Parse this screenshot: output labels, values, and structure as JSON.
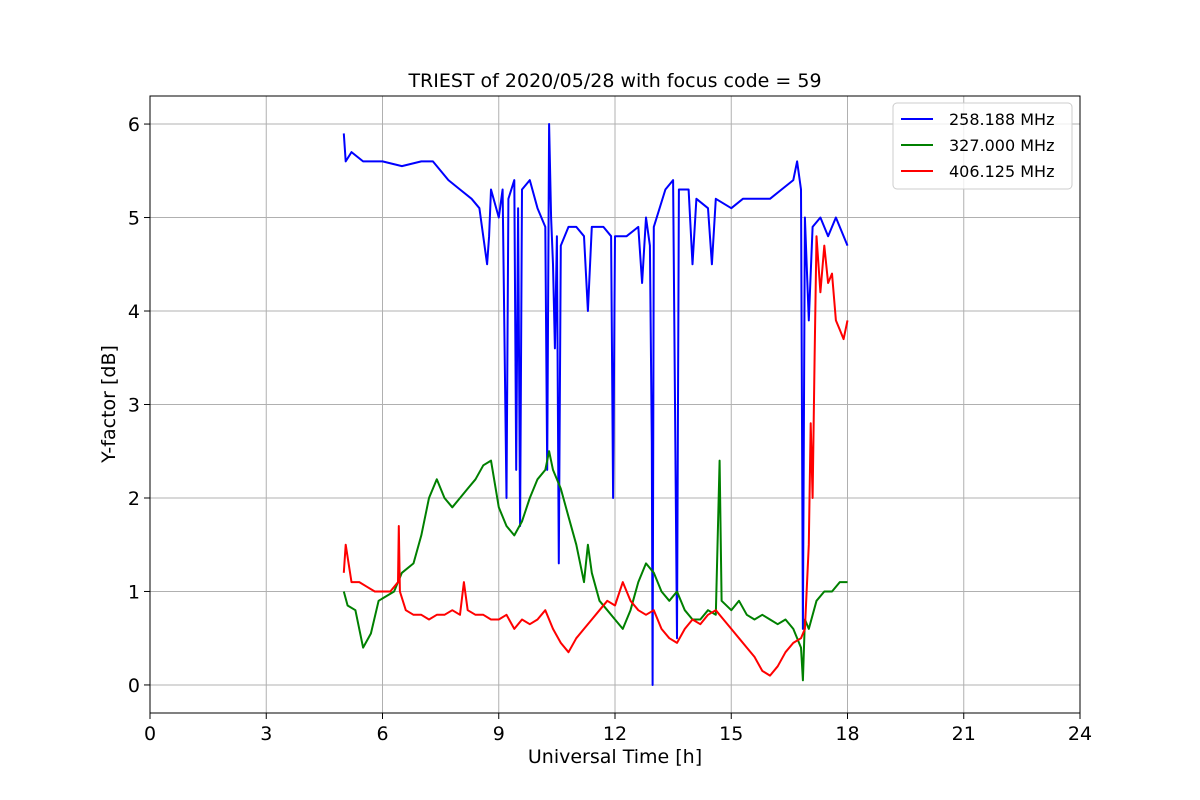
{
  "chart_data": {
    "type": "line",
    "title": "TRIEST of 2020/05/28 with focus code = 59",
    "xlabel": "Universal Time [h]",
    "ylabel": "Y-factor [dB]",
    "xlim": [
      0,
      24
    ],
    "ylim": [
      -0.3,
      6.3
    ],
    "xticks": [
      0,
      3,
      6,
      9,
      12,
      15,
      18,
      21,
      24
    ],
    "yticks": [
      0,
      1,
      2,
      3,
      4,
      5,
      6
    ],
    "grid": true,
    "legend_position": "top-right",
    "series": [
      {
        "name": "258.188 MHz",
        "color": "#0000ff",
        "points": [
          [
            5.0,
            5.9
          ],
          [
            5.05,
            5.6
          ],
          [
            5.2,
            5.7
          ],
          [
            5.5,
            5.6
          ],
          [
            6.0,
            5.6
          ],
          [
            6.5,
            5.55
          ],
          [
            7.0,
            5.6
          ],
          [
            7.3,
            5.6
          ],
          [
            7.7,
            5.4
          ],
          [
            8.0,
            5.3
          ],
          [
            8.3,
            5.2
          ],
          [
            8.5,
            5.1
          ],
          [
            8.7,
            4.5
          ],
          [
            8.75,
            4.8
          ],
          [
            8.8,
            5.3
          ],
          [
            9.0,
            5.0
          ],
          [
            9.1,
            5.3
          ],
          [
            9.2,
            2.0
          ],
          [
            9.25,
            5.2
          ],
          [
            9.4,
            5.4
          ],
          [
            9.45,
            2.3
          ],
          [
            9.5,
            5.1
          ],
          [
            9.55,
            1.7
          ],
          [
            9.6,
            5.3
          ],
          [
            9.8,
            5.4
          ],
          [
            10.0,
            5.1
          ],
          [
            10.2,
            4.9
          ],
          [
            10.25,
            2.3
          ],
          [
            10.3,
            6.0
          ],
          [
            10.35,
            5.0
          ],
          [
            10.4,
            4.5
          ],
          [
            10.45,
            3.6
          ],
          [
            10.5,
            4.8
          ],
          [
            10.55,
            1.3
          ],
          [
            10.6,
            4.7
          ],
          [
            10.8,
            4.9
          ],
          [
            11.0,
            4.9
          ],
          [
            11.2,
            4.8
          ],
          [
            11.3,
            4.0
          ],
          [
            11.4,
            4.9
          ],
          [
            11.7,
            4.9
          ],
          [
            11.9,
            4.8
          ],
          [
            11.95,
            2.0
          ],
          [
            12.0,
            4.8
          ],
          [
            12.3,
            4.8
          ],
          [
            12.6,
            4.9
          ],
          [
            12.7,
            4.3
          ],
          [
            12.8,
            5.0
          ],
          [
            12.9,
            4.7
          ],
          [
            12.95,
            2.6
          ],
          [
            12.97,
            0.0
          ],
          [
            13.0,
            4.9
          ],
          [
            13.3,
            5.3
          ],
          [
            13.5,
            5.4
          ],
          [
            13.6,
            0.5
          ],
          [
            13.65,
            5.3
          ],
          [
            13.9,
            5.3
          ],
          [
            14.0,
            4.5
          ],
          [
            14.1,
            5.2
          ],
          [
            14.4,
            5.1
          ],
          [
            14.5,
            4.5
          ],
          [
            14.6,
            5.2
          ],
          [
            15.0,
            5.1
          ],
          [
            15.3,
            5.2
          ],
          [
            15.7,
            5.2
          ],
          [
            16.0,
            5.2
          ],
          [
            16.3,
            5.3
          ],
          [
            16.6,
            5.4
          ],
          [
            16.7,
            5.6
          ],
          [
            16.8,
            5.3
          ],
          [
            16.85,
            0.6
          ],
          [
            16.9,
            5.0
          ],
          [
            17.0,
            3.9
          ],
          [
            17.1,
            4.9
          ],
          [
            17.3,
            5.0
          ],
          [
            17.5,
            4.8
          ],
          [
            17.7,
            5.0
          ],
          [
            18.0,
            4.7
          ]
        ]
      },
      {
        "name": "327.000 MHz",
        "color": "#008000",
        "points": [
          [
            5.0,
            1.0
          ],
          [
            5.1,
            0.85
          ],
          [
            5.3,
            0.8
          ],
          [
            5.5,
            0.4
          ],
          [
            5.7,
            0.55
          ],
          [
            5.9,
            0.9
          ],
          [
            6.1,
            0.95
          ],
          [
            6.3,
            1.0
          ],
          [
            6.5,
            1.2
          ],
          [
            6.8,
            1.3
          ],
          [
            7.0,
            1.6
          ],
          [
            7.2,
            2.0
          ],
          [
            7.4,
            2.2
          ],
          [
            7.6,
            2.0
          ],
          [
            7.8,
            1.9
          ],
          [
            8.0,
            2.0
          ],
          [
            8.2,
            2.1
          ],
          [
            8.4,
            2.2
          ],
          [
            8.6,
            2.35
          ],
          [
            8.8,
            2.4
          ],
          [
            9.0,
            1.9
          ],
          [
            9.2,
            1.7
          ],
          [
            9.4,
            1.6
          ],
          [
            9.6,
            1.75
          ],
          [
            9.8,
            2.0
          ],
          [
            10.0,
            2.2
          ],
          [
            10.2,
            2.3
          ],
          [
            10.3,
            2.5
          ],
          [
            10.4,
            2.3
          ],
          [
            10.6,
            2.1
          ],
          [
            10.8,
            1.8
          ],
          [
            11.0,
            1.5
          ],
          [
            11.2,
            1.1
          ],
          [
            11.3,
            1.5
          ],
          [
            11.4,
            1.2
          ],
          [
            11.6,
            0.9
          ],
          [
            11.8,
            0.8
          ],
          [
            12.0,
            0.7
          ],
          [
            12.2,
            0.6
          ],
          [
            12.4,
            0.8
          ],
          [
            12.6,
            1.1
          ],
          [
            12.8,
            1.3
          ],
          [
            13.0,
            1.2
          ],
          [
            13.2,
            1.0
          ],
          [
            13.4,
            0.9
          ],
          [
            13.6,
            1.0
          ],
          [
            13.8,
            0.8
          ],
          [
            14.0,
            0.7
          ],
          [
            14.2,
            0.7
          ],
          [
            14.4,
            0.8
          ],
          [
            14.6,
            0.75
          ],
          [
            14.7,
            2.4
          ],
          [
            14.75,
            0.9
          ],
          [
            15.0,
            0.8
          ],
          [
            15.2,
            0.9
          ],
          [
            15.4,
            0.75
          ],
          [
            15.6,
            0.7
          ],
          [
            15.8,
            0.75
          ],
          [
            16.0,
            0.7
          ],
          [
            16.2,
            0.65
          ],
          [
            16.4,
            0.7
          ],
          [
            16.6,
            0.6
          ],
          [
            16.8,
            0.4
          ],
          [
            16.85,
            0.05
          ],
          [
            16.9,
            0.7
          ],
          [
            17.0,
            0.6
          ],
          [
            17.2,
            0.9
          ],
          [
            17.4,
            1.0
          ],
          [
            17.6,
            1.0
          ],
          [
            17.8,
            1.1
          ],
          [
            18.0,
            1.1
          ]
        ]
      },
      {
        "name": "406.125 MHz",
        "color": "#ff0000",
        "points": [
          [
            5.0,
            1.2
          ],
          [
            5.05,
            1.5
          ],
          [
            5.2,
            1.1
          ],
          [
            5.4,
            1.1
          ],
          [
            5.6,
            1.05
          ],
          [
            5.8,
            1.0
          ],
          [
            6.0,
            1.0
          ],
          [
            6.2,
            1.0
          ],
          [
            6.4,
            1.1
          ],
          [
            6.42,
            1.7
          ],
          [
            6.45,
            1.0
          ],
          [
            6.6,
            0.8
          ],
          [
            6.8,
            0.75
          ],
          [
            7.0,
            0.75
          ],
          [
            7.2,
            0.7
          ],
          [
            7.4,
            0.75
          ],
          [
            7.6,
            0.75
          ],
          [
            7.8,
            0.8
          ],
          [
            8.0,
            0.75
          ],
          [
            8.1,
            1.1
          ],
          [
            8.2,
            0.8
          ],
          [
            8.4,
            0.75
          ],
          [
            8.6,
            0.75
          ],
          [
            8.8,
            0.7
          ],
          [
            9.0,
            0.7
          ],
          [
            9.2,
            0.75
          ],
          [
            9.4,
            0.6
          ],
          [
            9.6,
            0.7
          ],
          [
            9.8,
            0.65
          ],
          [
            10.0,
            0.7
          ],
          [
            10.2,
            0.8
          ],
          [
            10.4,
            0.6
          ],
          [
            10.6,
            0.45
          ],
          [
            10.8,
            0.35
          ],
          [
            11.0,
            0.5
          ],
          [
            11.2,
            0.6
          ],
          [
            11.4,
            0.7
          ],
          [
            11.6,
            0.8
          ],
          [
            11.8,
            0.9
          ],
          [
            12.0,
            0.85
          ],
          [
            12.2,
            1.1
          ],
          [
            12.4,
            0.9
          ],
          [
            12.6,
            0.8
          ],
          [
            12.8,
            0.75
          ],
          [
            13.0,
            0.8
          ],
          [
            13.2,
            0.6
          ],
          [
            13.4,
            0.5
          ],
          [
            13.6,
            0.45
          ],
          [
            13.8,
            0.6
          ],
          [
            14.0,
            0.7
          ],
          [
            14.2,
            0.65
          ],
          [
            14.4,
            0.75
          ],
          [
            14.6,
            0.8
          ],
          [
            14.8,
            0.7
          ],
          [
            15.0,
            0.6
          ],
          [
            15.2,
            0.5
          ],
          [
            15.4,
            0.4
          ],
          [
            15.6,
            0.3
          ],
          [
            15.8,
            0.15
          ],
          [
            16.0,
            0.1
          ],
          [
            16.2,
            0.2
          ],
          [
            16.4,
            0.35
          ],
          [
            16.6,
            0.45
          ],
          [
            16.8,
            0.5
          ],
          [
            16.9,
            0.6
          ],
          [
            17.0,
            1.5
          ],
          [
            17.05,
            2.8
          ],
          [
            17.1,
            2.0
          ],
          [
            17.15,
            3.5
          ],
          [
            17.2,
            4.8
          ],
          [
            17.3,
            4.2
          ],
          [
            17.4,
            4.7
          ],
          [
            17.5,
            4.3
          ],
          [
            17.6,
            4.4
          ],
          [
            17.7,
            3.9
          ],
          [
            17.8,
            3.8
          ],
          [
            17.9,
            3.7
          ],
          [
            18.0,
            3.9
          ]
        ]
      }
    ]
  }
}
